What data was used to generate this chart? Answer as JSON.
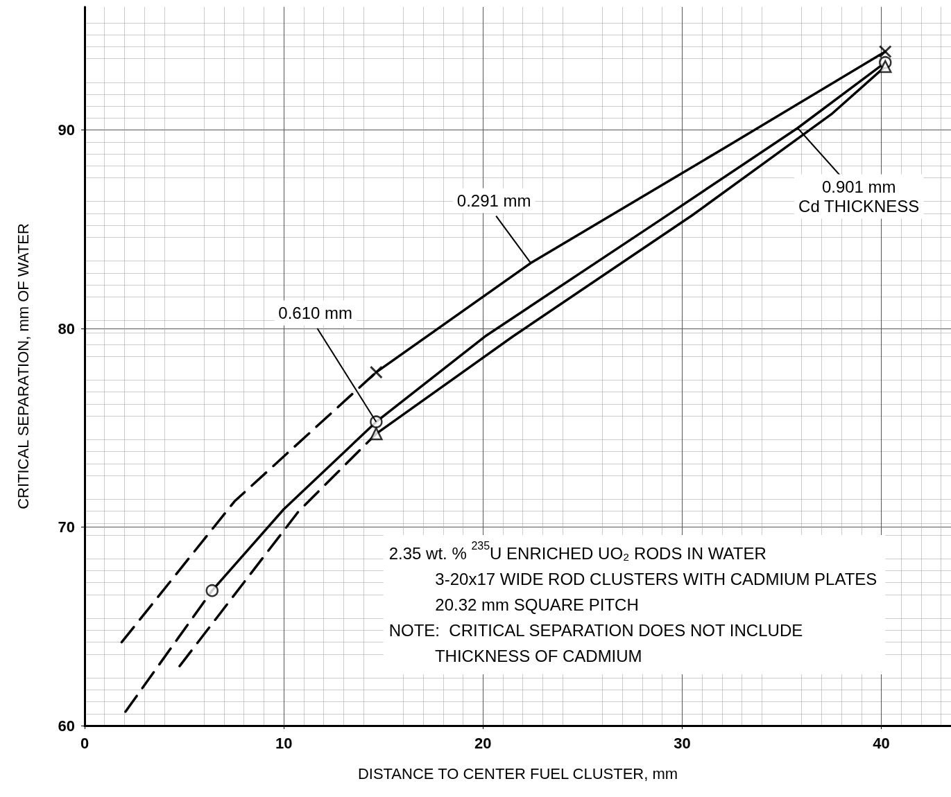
{
  "chart_data": {
    "type": "line",
    "xlabel": "DISTANCE TO CENTER FUEL CLUSTER, mm",
    "ylabel": "CRITICAL SEPARATION, mm OF WATER",
    "xlim": [
      0,
      43.5
    ],
    "ylim": [
      60,
      96.2
    ],
    "xticks": [
      0,
      10,
      20,
      30,
      40
    ],
    "yticks": [
      60,
      70,
      80,
      90
    ],
    "grid": true,
    "series": [
      {
        "color": "#000000",
        "line_style": "dashed",
        "x": [
          1.86,
          7.53,
          14.64
        ],
        "values": [
          64.2,
          71.3,
          77.8
        ]
      },
      {
        "color": "#000000",
        "line_style": "solid",
        "x": [
          14.64,
          22.4,
          32.3,
          40.2
        ],
        "values": [
          77.8,
          83.3,
          89.2,
          93.95
        ]
      },
      {
        "color": "#000000",
        "line_style": "dashed",
        "x": [
          2.05,
          6.4
        ],
        "values": [
          60.7,
          66.8
        ]
      },
      {
        "color": "#000000",
        "line_style": "solid",
        "x": [
          6.4,
          10,
          14.64,
          20.1,
          28.8,
          35.8,
          40.2
        ],
        "values": [
          66.8,
          70.9,
          75.3,
          79.6,
          85.4,
          90.1,
          93.4
        ]
      },
      {
        "color": "#000000",
        "line_style": "dashed",
        "x": [
          4.77,
          10.75,
          14.64
        ],
        "values": [
          63.0,
          70.8,
          74.7
        ]
      },
      {
        "color": "#000000",
        "line_style": "solid",
        "x": [
          14.64,
          21.5,
          30.5,
          37.5,
          40.2
        ],
        "values": [
          74.7,
          79.6,
          85.7,
          90.8,
          93.2
        ]
      },
      {
        "type": "scatter",
        "color": "#000000",
        "marker": "cross",
        "x": [
          14.64,
          40.2
        ],
        "values": [
          77.8,
          93.95
        ]
      },
      {
        "type": "scatter",
        "color": "#000000",
        "marker": "circle",
        "x": [
          6.4,
          14.64,
          40.2
        ],
        "values": [
          66.8,
          75.3,
          93.4
        ]
      },
      {
        "type": "scatter",
        "color": "#000000",
        "marker": "triangle",
        "x": [
          14.64,
          40.2
        ],
        "values": [
          74.7,
          93.2
        ]
      }
    ],
    "annotations": [
      {
        "text": "0.291 mm",
        "x": 22.4,
        "y": 83.3
      },
      {
        "text": "0.610 mm",
        "x": 14.64,
        "y": 75.3
      },
      {
        "text": "0.901 mm\nCd THICKNESS",
        "x": 35.8,
        "y": 90.1
      },
      "2.35 wt. % $^{235}$U ENRICHED UO₂ RODS IN WATER",
      "3-20x17 WIDE ROD CLUSTERS WITH CADMIUM PLATES",
      "20.32 mm SQUARE PITCH",
      "NOTE:  CRITICAL SEPARATION DOES NOT INCLUDE",
      "THICKNESS OF CADMIUM"
    ]
  }
}
